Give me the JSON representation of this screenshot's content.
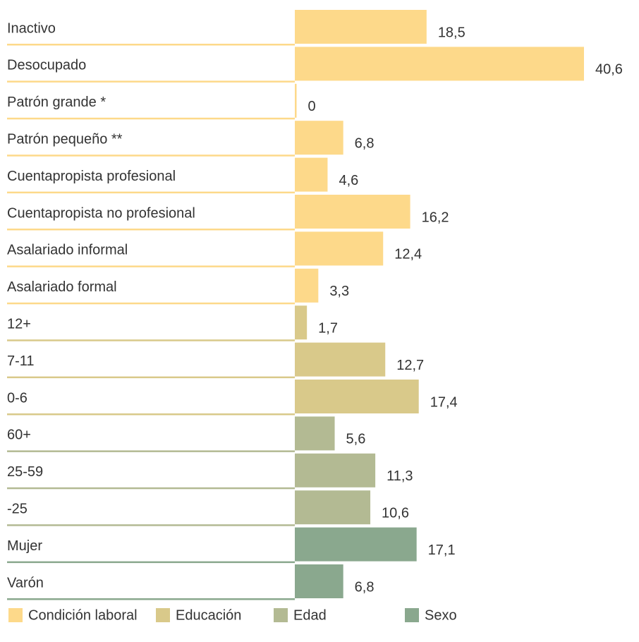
{
  "chart_data": {
    "type": "barh",
    "categories": [
      "Inactivo",
      "Desocupado",
      "Patrón grande *",
      "Patrón pequeño **",
      "Cuentapropista profesional",
      "Cuentapropista no profesional",
      "Asalariado informal",
      "Asalariado formal",
      "12+",
      "7-11",
      "0-6",
      "60+",
      "25-59",
      "-25",
      "Mujer",
      "Varón"
    ],
    "series": [
      {
        "name": "Condición laboral",
        "color": "#fdd98a",
        "values": [
          18.5,
          40.6,
          0,
          6.8,
          4.6,
          16.2,
          12.4,
          3.3,
          null,
          null,
          null,
          null,
          null,
          null,
          null,
          null
        ],
        "value_labels": [
          "18,5",
          "40,6",
          "0",
          "6,8",
          "4,6",
          "16,2",
          "12,4",
          "3,3",
          null,
          null,
          null,
          null,
          null,
          null,
          null,
          null
        ]
      },
      {
        "name": "Educación",
        "color": "#d9c98a",
        "values": [
          null,
          null,
          null,
          null,
          null,
          null,
          null,
          null,
          1.7,
          12.7,
          17.4,
          null,
          null,
          null,
          null,
          null
        ],
        "value_labels": [
          null,
          null,
          null,
          null,
          null,
          null,
          null,
          null,
          "1,7",
          "12,7",
          "17,4",
          null,
          null,
          null,
          null,
          null
        ]
      },
      {
        "name": "Edad",
        "color": "#b3ba93",
        "values": [
          null,
          null,
          null,
          null,
          null,
          null,
          null,
          null,
          null,
          null,
          null,
          5.6,
          11.3,
          10.6,
          null,
          null
        ],
        "value_labels": [
          null,
          null,
          null,
          null,
          null,
          null,
          null,
          null,
          null,
          null,
          null,
          "5,6",
          "11,3",
          "10,6",
          null,
          null
        ]
      },
      {
        "name": "Sexo",
        "color": "#8aa88e",
        "values": [
          null,
          null,
          null,
          null,
          null,
          null,
          null,
          null,
          null,
          null,
          null,
          null,
          null,
          null,
          17.1,
          6.8
        ],
        "value_labels": [
          null,
          null,
          null,
          null,
          null,
          null,
          null,
          null,
          null,
          null,
          null,
          null,
          null,
          null,
          "17,1",
          "6,8"
        ]
      }
    ]
  }
}
